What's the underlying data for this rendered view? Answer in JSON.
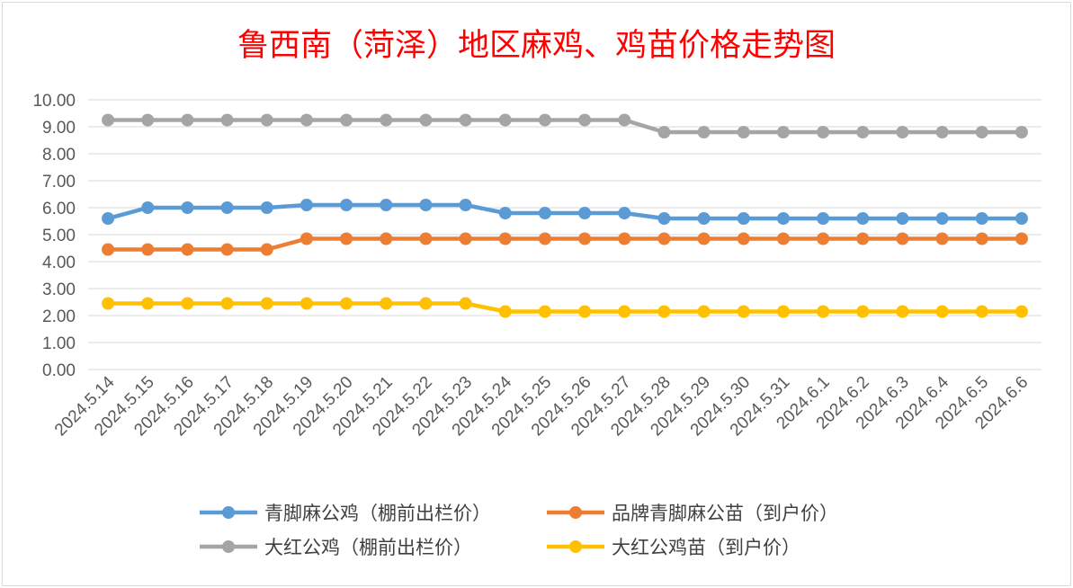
{
  "chart_data": {
    "type": "line",
    "title": "鲁西南（菏泽）地区麻鸡、鸡苗价格走势图",
    "xlabel": "",
    "ylabel": "",
    "ylim": [
      0,
      10
    ],
    "y_ticks": [
      "0.00",
      "1.00",
      "2.00",
      "3.00",
      "4.00",
      "5.00",
      "6.00",
      "7.00",
      "8.00",
      "9.00",
      "10.00"
    ],
    "grid": true,
    "legend_position": "bottom",
    "categories": [
      "2024.5.14",
      "2024.5.15",
      "2024.5.16",
      "2024.5.17",
      "2024.5.18",
      "2024.5.19",
      "2024.5.20",
      "2024.5.21",
      "2024.5.22",
      "2024.5.23",
      "2024.5.24",
      "2024.5.25",
      "2024.5.26",
      "2024.5.27",
      "2024.5.28",
      "2024.5.29",
      "2024.5.30",
      "2024.5.31",
      "2024.6.1",
      "2024.6.2",
      "2024.6.3",
      "2024.6.4",
      "2024.6.5",
      "2024.6.6"
    ],
    "series": [
      {
        "name": "青脚麻公鸡（棚前出栏价）",
        "color": "#5b9bd5",
        "values": [
          5.6,
          6.0,
          6.0,
          6.0,
          6.0,
          6.1,
          6.1,
          6.1,
          6.1,
          6.1,
          5.8,
          5.8,
          5.8,
          5.8,
          5.6,
          5.6,
          5.6,
          5.6,
          5.6,
          5.6,
          5.6,
          5.6,
          5.6,
          5.6
        ]
      },
      {
        "name": "品牌青脚麻公苗（到户价）",
        "color": "#ed7d31",
        "values": [
          4.45,
          4.45,
          4.45,
          4.45,
          4.45,
          4.85,
          4.85,
          4.85,
          4.85,
          4.85,
          4.85,
          4.85,
          4.85,
          4.85,
          4.85,
          4.85,
          4.85,
          4.85,
          4.85,
          4.85,
          4.85,
          4.85,
          4.85,
          4.85
        ]
      },
      {
        "name": "大红公鸡（棚前出栏价）",
        "color": "#a5a5a5",
        "values": [
          9.25,
          9.25,
          9.25,
          9.25,
          9.25,
          9.25,
          9.25,
          9.25,
          9.25,
          9.25,
          9.25,
          9.25,
          9.25,
          9.25,
          8.8,
          8.8,
          8.8,
          8.8,
          8.8,
          8.8,
          8.8,
          8.8,
          8.8,
          8.8
        ]
      },
      {
        "name": "大红公鸡苗（到户价）",
        "color": "#ffc000",
        "values": [
          2.45,
          2.45,
          2.45,
          2.45,
          2.45,
          2.45,
          2.45,
          2.45,
          2.45,
          2.45,
          2.15,
          2.15,
          2.15,
          2.15,
          2.15,
          2.15,
          2.15,
          2.15,
          2.15,
          2.15,
          2.15,
          2.15,
          2.15,
          2.15
        ]
      }
    ]
  }
}
